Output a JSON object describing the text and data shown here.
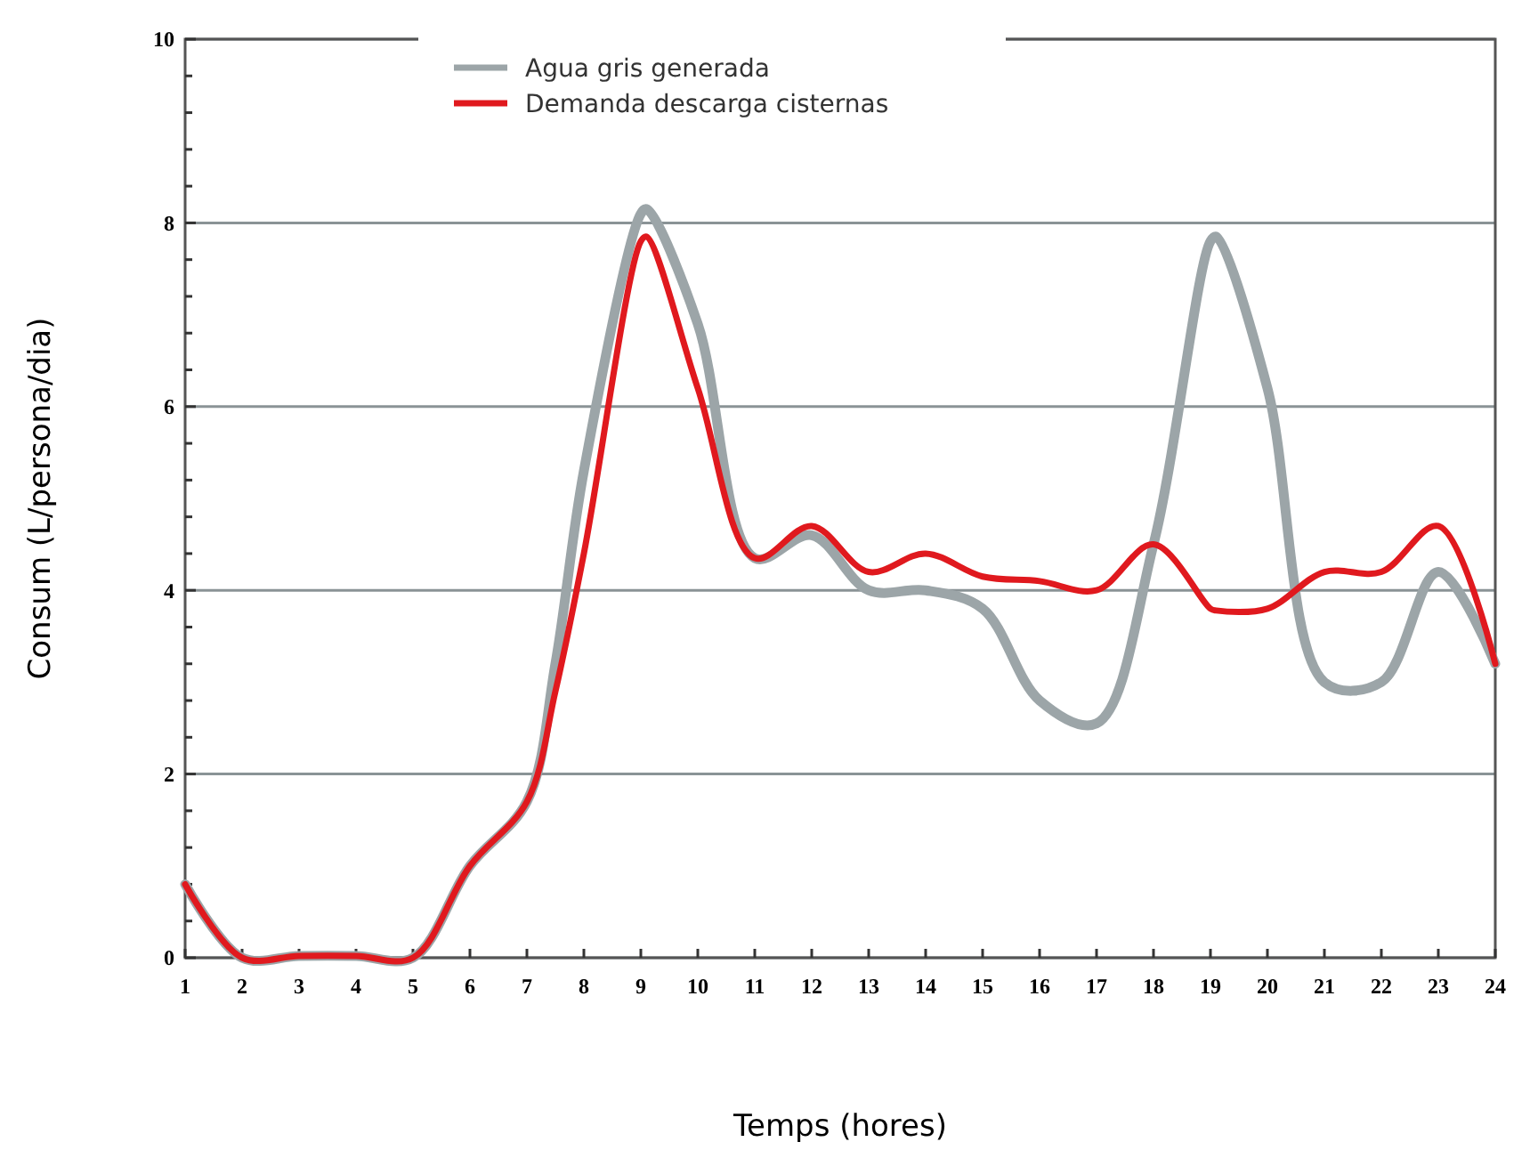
{
  "chart_data": {
    "type": "line",
    "xlabel": "Temps (hores)",
    "ylabel": "Consum (L/persona/dia)",
    "x": [
      1,
      2,
      3,
      4,
      5,
      6,
      7,
      7.5,
      8,
      9,
      9.1,
      10,
      11,
      12,
      13,
      14,
      15,
      16,
      17,
      18,
      19,
      19.1,
      20,
      21,
      22,
      23,
      24
    ],
    "series": [
      {
        "name": "Agua gris generada",
        "color": "#9ca5a8",
        "values": [
          0.8,
          0,
          0.02,
          0.02,
          0,
          1.0,
          1.7,
          3.2,
          5.3,
          8.1,
          8.15,
          6.9,
          4.35,
          4.6,
          4.0,
          4.0,
          3.8,
          2.8,
          2.55,
          4.5,
          7.8,
          7.85,
          6.2,
          3.0,
          3.0,
          4.2,
          3.2
        ]
      },
      {
        "name": "Demanda descarga cisternas",
        "color": "#e0191e",
        "values": [
          0.8,
          0,
          0.02,
          0.02,
          0,
          1.0,
          1.7,
          2.9,
          4.4,
          7.8,
          7.85,
          6.2,
          4.35,
          4.7,
          4.2,
          4.4,
          4.15,
          4.1,
          4.0,
          4.5,
          3.8,
          3.78,
          3.8,
          4.2,
          4.2,
          4.7,
          3.2
        ]
      }
    ],
    "xlim": [
      1,
      24
    ],
    "xticks": [
      1,
      2,
      3,
      4,
      5,
      6,
      7,
      8,
      9,
      10,
      11,
      12,
      13,
      14,
      15,
      16,
      17,
      18,
      19,
      20,
      21,
      22,
      23,
      24
    ],
    "ylim": [
      0,
      10
    ],
    "yticks": [
      0,
      {
        "value": 0.4,
        "label": null
      },
      {
        "value": 0.8,
        "label": null
      },
      {
        "value": 1.2,
        "label": null
      },
      {
        "value": 1.6,
        "label": null
      },
      2,
      {
        "value": 2.4,
        "label": null
      },
      {
        "value": 2.8,
        "label": null
      },
      {
        "value": 3.2,
        "label": null
      },
      {
        "value": 3.6,
        "label": null
      },
      4,
      {
        "value": 4.4,
        "label": null
      },
      {
        "value": 4.8,
        "label": null
      },
      {
        "value": 5.2,
        "label": null
      },
      {
        "value": 5.6,
        "label": null
      },
      6,
      {
        "value": 6.4,
        "label": null
      },
      {
        "value": 6.8,
        "label": null
      },
      {
        "value": 7.2,
        "label": null
      },
      {
        "value": 7.6,
        "label": null
      },
      8,
      {
        "value": 8.4,
        "label": null
      },
      {
        "value": 8.8,
        "label": null
      },
      {
        "value": 9.2,
        "label": null
      },
      {
        "value": 9.6,
        "label": null
      },
      10
    ],
    "grid": "y",
    "legend": "top",
    "marker": "none",
    "line_style": "solid"
  }
}
